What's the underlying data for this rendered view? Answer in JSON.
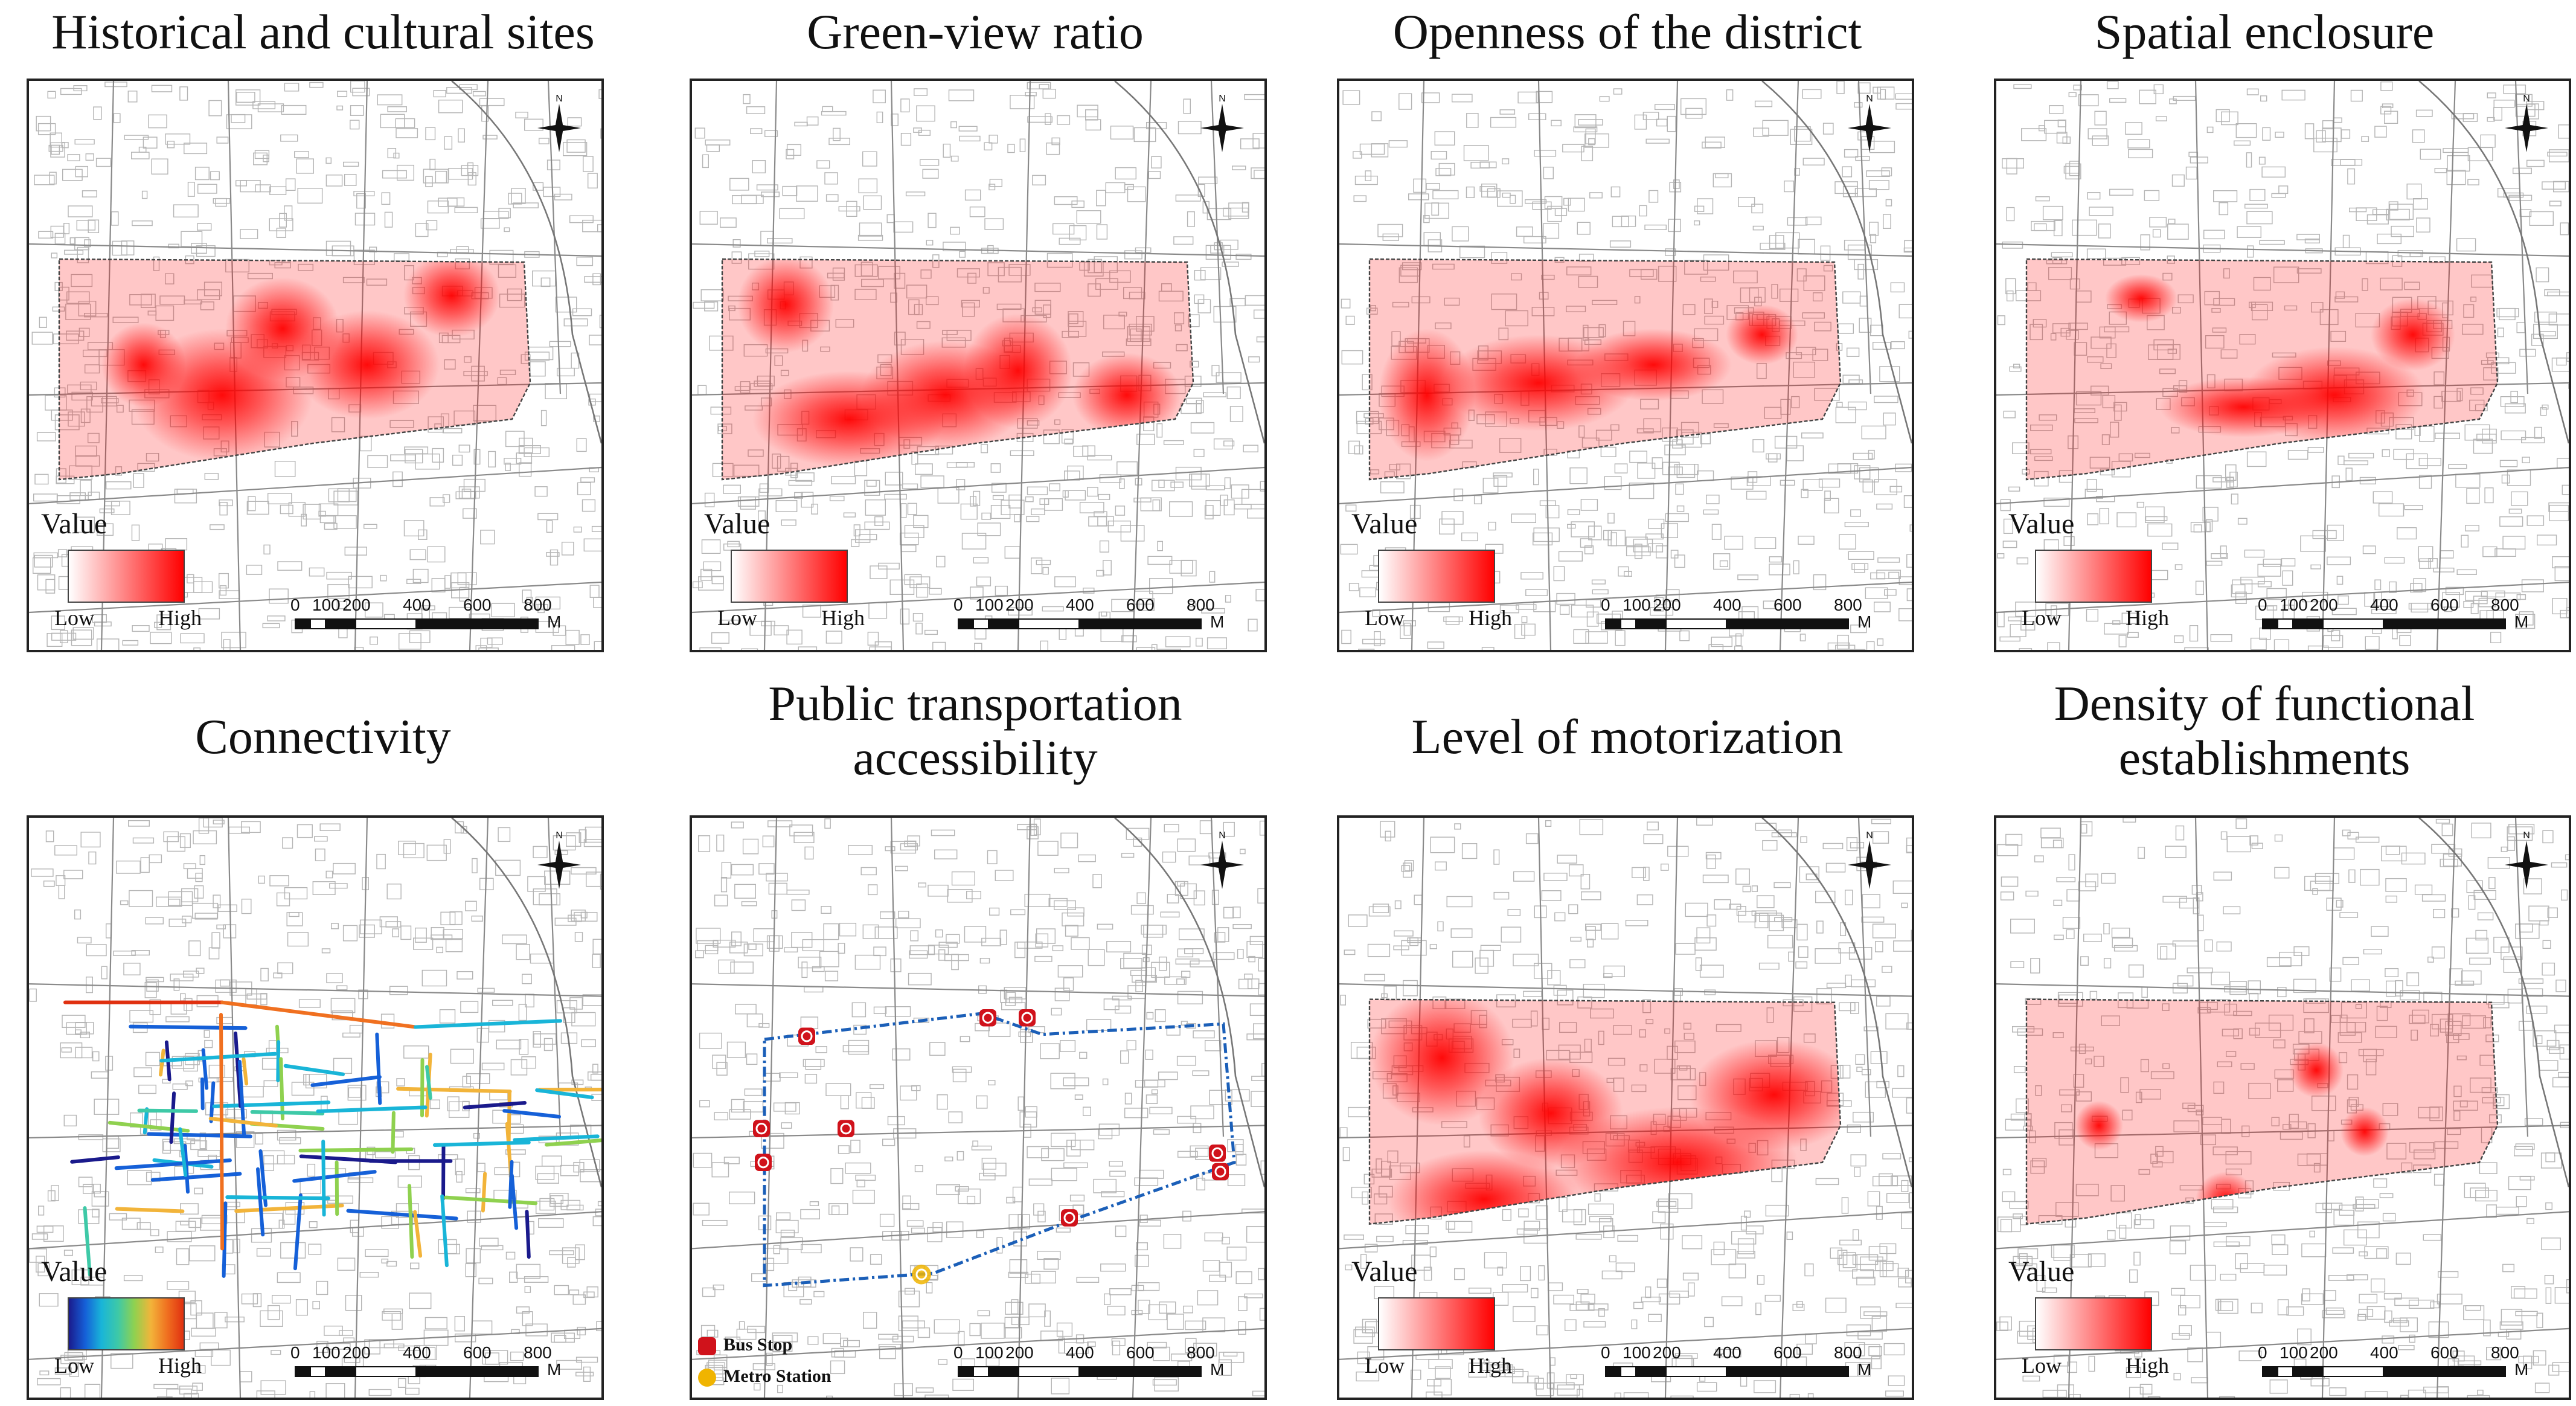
{
  "figure": {
    "legend_value_label": "Value",
    "legend_low": "Low",
    "legend_high": "High",
    "scale_ticks": [
      "0",
      "100",
      "200",
      "400",
      "600",
      "800"
    ],
    "scale_unit": "M",
    "north_label": "N",
    "heat_color": "#ff0000",
    "connectivity_ramp": [
      "#1a1a8c",
      "#1560d8",
      "#19b5d8",
      "#3ec9a7",
      "#8fd14f",
      "#f2b43a",
      "#f07020",
      "#e03010"
    ]
  },
  "panels": [
    {
      "title": "Historical and cultural sites",
      "type": "heatmap"
    },
    {
      "title": "Green-view ratio",
      "type": "heatmap"
    },
    {
      "title": "Openness of the district",
      "type": "heatmap"
    },
    {
      "title": "Spatial enclosure",
      "type": "heatmap"
    },
    {
      "title": "Connectivity",
      "type": "network"
    },
    {
      "title": "Public transportation accessibility",
      "type": "points",
      "poi_legend": [
        {
          "label": "Bus Stop",
          "icon": "bus-stop-icon",
          "color": "#d0121b"
        },
        {
          "label": "Metro Station",
          "icon": "metro-station-icon",
          "color": "#f0b400"
        }
      ]
    },
    {
      "title": "Level of motorization",
      "type": "heatmap"
    },
    {
      "title": "Density of functional establishments",
      "type": "heatmap"
    }
  ]
}
